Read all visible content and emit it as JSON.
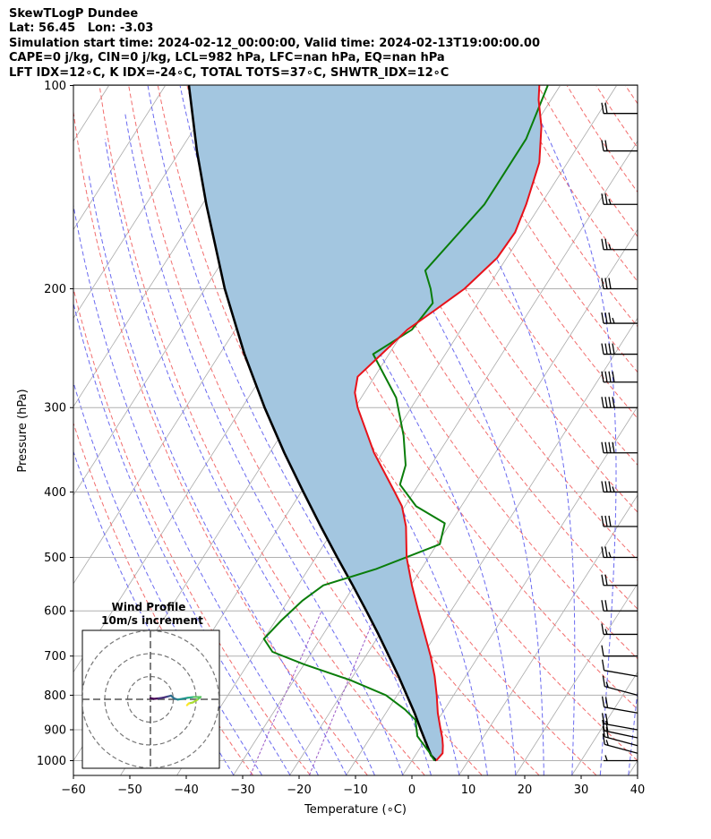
{
  "header": {
    "line1": "SkewTLogP Dundee",
    "line2": "Lat: 56.45   Lon: -3.03",
    "line3": "Simulation start time: 2024-02-12_00:00:00, Valid time: 2024-02-13T19:00:00.00",
    "line4": "CAPE=0 j/kg, CIN=0 j/kg, LCL=982 hPa, LFC=nan hPa, EQ=nan hPa",
    "line5": "LFT IDX=12∘C, K IDX=-24∘C, TOTAL TOTS=37∘C, SHWTR_IDX=12∘C"
  },
  "colors": {
    "temperature": "#e8121a",
    "dewpoint": "#0a7d0a",
    "parcel": "#000000",
    "cape_fill": "#a3c6e0",
    "isotherm": "#aaaaaa",
    "dry_adiabat": "#f26d6d",
    "moist_adiabat": "#6a6af0",
    "mixing_ratio": "#9b59c7"
  },
  "chart_data": {
    "type": "skewt",
    "xlabel": "Temperature (∘C)",
    "ylabel": "Pressure (hPa)",
    "xlim": [
      -60,
      40
    ],
    "ylim": [
      1050,
      100
    ],
    "y_scale": "log",
    "x_ticks": [
      "−60",
      "−50",
      "−40",
      "−30",
      "−20",
      "−10",
      "0",
      "10",
      "20",
      "30",
      "40"
    ],
    "y_ticks": [
      "1000",
      "900",
      "800",
      "700",
      "600",
      "500",
      "400",
      "300",
      "200",
      "100"
    ],
    "temperature_profile": [
      {
        "p": 1000,
        "t": 4.3
      },
      {
        "p": 975,
        "t": 4.6
      },
      {
        "p": 950,
        "t": 3.8
      },
      {
        "p": 925,
        "t": 2.8
      },
      {
        "p": 900,
        "t": 1.6
      },
      {
        "p": 850,
        "t": -0.8
      },
      {
        "p": 800,
        "t": -3.0
      },
      {
        "p": 750,
        "t": -5.5
      },
      {
        "p": 700,
        "t": -8.5
      },
      {
        "p": 650,
        "t": -12.0
      },
      {
        "p": 600,
        "t": -15.8
      },
      {
        "p": 550,
        "t": -19.8
      },
      {
        "p": 500,
        "t": -23.9
      },
      {
        "p": 450,
        "t": -27.5
      },
      {
        "p": 420,
        "t": -30.5
      },
      {
        "p": 400,
        "t": -33.4
      },
      {
        "p": 350,
        "t": -41.5
      },
      {
        "p": 300,
        "t": -49.5
      },
      {
        "p": 285,
        "t": -51.7
      },
      {
        "p": 270,
        "t": -53.0
      },
      {
        "p": 250,
        "t": -51.3
      },
      {
        "p": 230,
        "t": -49.5
      },
      {
        "p": 215,
        "t": -46.8
      },
      {
        "p": 200,
        "t": -44.0
      },
      {
        "p": 180,
        "t": -41.7
      },
      {
        "p": 165,
        "t": -41.4
      },
      {
        "p": 150,
        "t": -42.6
      },
      {
        "p": 130,
        "t": -45.0
      },
      {
        "p": 115,
        "t": -48.7
      },
      {
        "p": 105,
        "t": -52.2
      },
      {
        "p": 100,
        "t": -53.7
      }
    ],
    "dewpoint_profile": [
      {
        "p": 1000,
        "t": 4.0
      },
      {
        "p": 970,
        "t": 2.0
      },
      {
        "p": 920,
        "t": -1.8
      },
      {
        "p": 870,
        "t": -4.0
      },
      {
        "p": 840,
        "t": -7.0
      },
      {
        "p": 800,
        "t": -12.0
      },
      {
        "p": 760,
        "t": -20.0
      },
      {
        "p": 720,
        "t": -30.0
      },
      {
        "p": 690,
        "t": -37.0
      },
      {
        "p": 660,
        "t": -40.0
      },
      {
        "p": 620,
        "t": -39.0
      },
      {
        "p": 580,
        "t": -37.5
      },
      {
        "p": 550,
        "t": -35.5
      },
      {
        "p": 520,
        "t": -28.0
      },
      {
        "p": 478,
        "t": -19.5
      },
      {
        "p": 445,
        "t": -21.0
      },
      {
        "p": 420,
        "t": -28.0
      },
      {
        "p": 390,
        "t": -33.3
      },
      {
        "p": 365,
        "t": -34.5
      },
      {
        "p": 330,
        "t": -38.2
      },
      {
        "p": 290,
        "t": -43.8
      },
      {
        "p": 250,
        "t": -52.8
      },
      {
        "p": 230,
        "t": -48.7
      },
      {
        "p": 210,
        "t": -48.0
      },
      {
        "p": 200,
        "t": -50.0
      },
      {
        "p": 188,
        "t": -53.0
      },
      {
        "p": 150,
        "t": -50.0
      },
      {
        "p": 120,
        "t": -50.0
      },
      {
        "p": 100,
        "t": -52.2
      }
    ],
    "parcel_profile": [
      {
        "p": 1000,
        "t": 4.3
      },
      {
        "p": 982,
        "t": 2.8
      },
      {
        "p": 950,
        "t": 1.0
      },
      {
        "p": 900,
        "t": -1.9
      },
      {
        "p": 850,
        "t": -4.9
      },
      {
        "p": 800,
        "t": -8.3
      },
      {
        "p": 750,
        "t": -11.9
      },
      {
        "p": 700,
        "t": -15.9
      },
      {
        "p": 650,
        "t": -20.2
      },
      {
        "p": 600,
        "t": -25.0
      },
      {
        "p": 550,
        "t": -30.3
      },
      {
        "p": 500,
        "t": -36.2
      },
      {
        "p": 450,
        "t": -42.6
      },
      {
        "p": 400,
        "t": -49.6
      },
      {
        "p": 350,
        "t": -57.4
      },
      {
        "p": 300,
        "t": -66.0
      },
      {
        "p": 250,
        "t": -75.6
      },
      {
        "p": 200,
        "t": -86.5
      },
      {
        "p": 150,
        "t": -99.3
      },
      {
        "p": 125,
        "t": -107.0
      },
      {
        "p": 100,
        "t": -115.8
      }
    ],
    "wind_barbs": [
      {
        "p": 1000,
        "speed_kt": 5,
        "dir": 270
      },
      {
        "p": 975,
        "speed_kt": 15,
        "dir": 285
      },
      {
        "p": 950,
        "speed_kt": 20,
        "dir": 285
      },
      {
        "p": 925,
        "speed_kt": 20,
        "dir": 282
      },
      {
        "p": 900,
        "speed_kt": 20,
        "dir": 280
      },
      {
        "p": 850,
        "speed_kt": 20,
        "dir": 280
      },
      {
        "p": 800,
        "speed_kt": 15,
        "dir": 285
      },
      {
        "p": 750,
        "speed_kt": 10,
        "dir": 280
      },
      {
        "p": 700,
        "speed_kt": 10,
        "dir": 270
      },
      {
        "p": 650,
        "speed_kt": 15,
        "dir": 270
      },
      {
        "p": 600,
        "speed_kt": 20,
        "dir": 270
      },
      {
        "p": 550,
        "speed_kt": 20,
        "dir": 270
      },
      {
        "p": 500,
        "speed_kt": 25,
        "dir": 270
      },
      {
        "p": 450,
        "speed_kt": 30,
        "dir": 270
      },
      {
        "p": 400,
        "speed_kt": 35,
        "dir": 270
      },
      {
        "p": 350,
        "speed_kt": 40,
        "dir": 270
      },
      {
        "p": 300,
        "speed_kt": 40,
        "dir": 270
      },
      {
        "p": 275,
        "speed_kt": 40,
        "dir": 270
      },
      {
        "p": 250,
        "speed_kt": 40,
        "dir": 270
      },
      {
        "p": 225,
        "speed_kt": 35,
        "dir": 270
      },
      {
        "p": 200,
        "speed_kt": 30,
        "dir": 270
      },
      {
        "p": 175,
        "speed_kt": 25,
        "dir": 270
      },
      {
        "p": 150,
        "speed_kt": 25,
        "dir": 270
      },
      {
        "p": 125,
        "speed_kt": 20,
        "dir": 270
      },
      {
        "p": 110,
        "speed_kt": 20,
        "dir": 270
      }
    ],
    "inset": {
      "title_line1": "Wind Profile",
      "title_line2": "10m/s increment",
      "ring_increment_ms": 10,
      "hodograph": [
        {
          "u": 0.0,
          "v": 0.5
        },
        {
          "u": 1.5,
          "v": 0.2
        },
        {
          "u": 3.5,
          "v": 0.4
        },
        {
          "u": 5.5,
          "v": 0.7
        },
        {
          "u": 7.5,
          "v": 1.2
        },
        {
          "u": 9.0,
          "v": 1.6
        },
        {
          "u": 10.5,
          "v": 0.3
        },
        {
          "u": 12.0,
          "v": -0.1
        },
        {
          "u": 14.0,
          "v": 0.2
        },
        {
          "u": 16.5,
          "v": 0.7
        },
        {
          "u": 19.0,
          "v": 1.0
        },
        {
          "u": 22.0,
          "v": 1.0
        },
        {
          "u": 20.5,
          "v": -0.2
        },
        {
          "u": 18.5,
          "v": -1.4
        },
        {
          "u": 16.8,
          "v": -1.8
        },
        {
          "u": 16.0,
          "v": -2.6
        }
      ]
    }
  }
}
